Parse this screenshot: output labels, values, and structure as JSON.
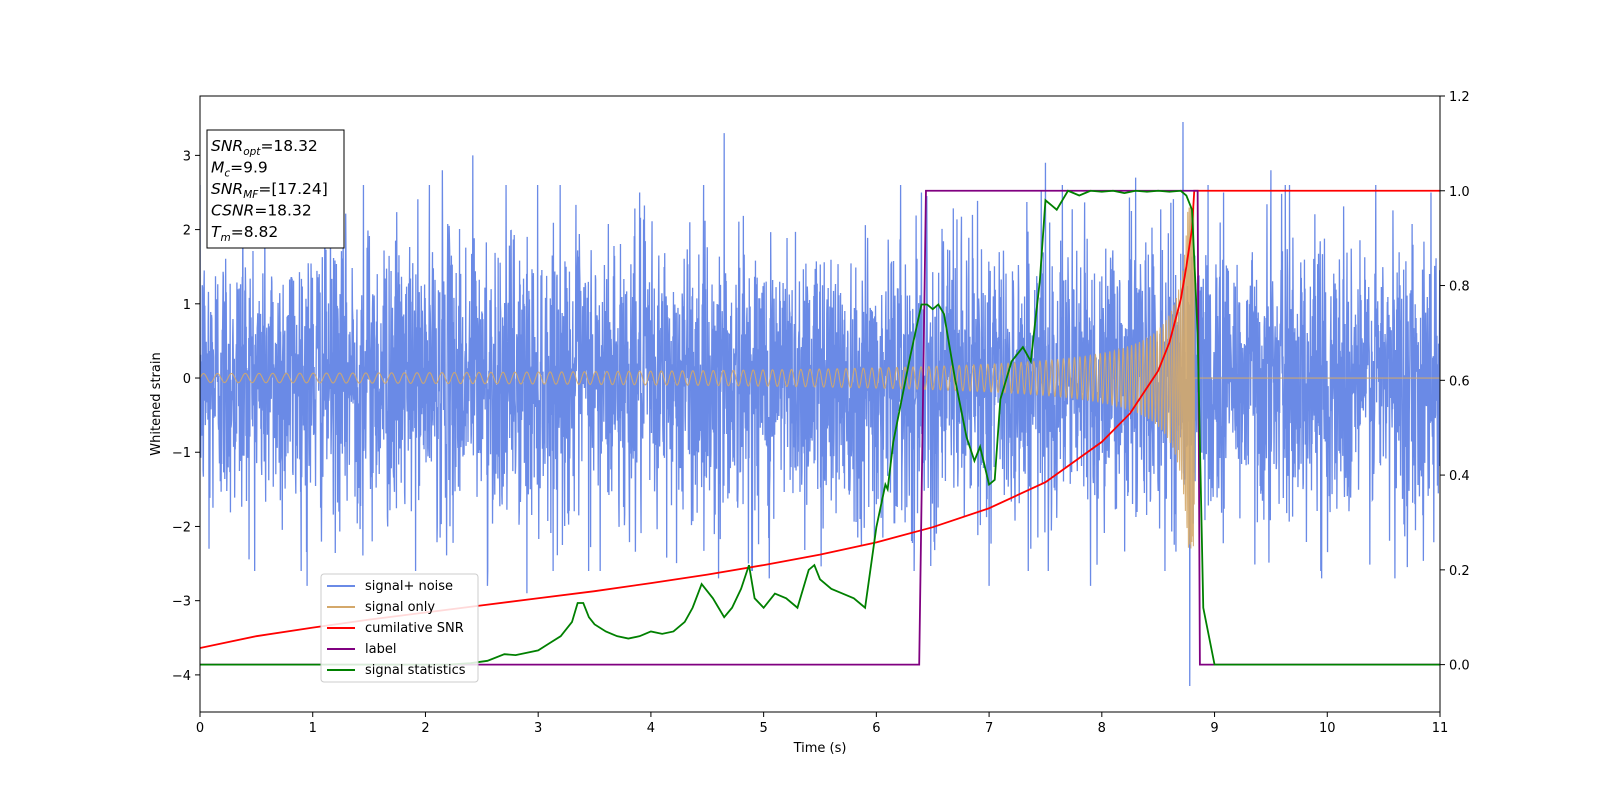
{
  "chart_data": {
    "type": "line",
    "xlabel": "Time (s)",
    "ylabel": "Whitened strain",
    "xlim": [
      0,
      11
    ],
    "ylim_left": [
      -4.5,
      3.8
    ],
    "ylim_right": [
      -0.1,
      1.2
    ],
    "x_ticks": [
      0,
      1,
      2,
      3,
      4,
      5,
      6,
      7,
      8,
      9,
      10,
      11
    ],
    "y_ticks_left": [
      -4,
      -3,
      -2,
      -1,
      0,
      1,
      2,
      3
    ],
    "y_ticks_right": [
      0.0,
      0.2,
      0.4,
      0.6,
      0.8,
      1.0,
      1.2
    ],
    "y_tick_labels_left": [
      "−4",
      "−3",
      "−2",
      "−1",
      "0",
      "1",
      "2",
      "3"
    ],
    "y_tick_labels_right": [
      "0.0",
      "0.2",
      "0.4",
      "0.6",
      "0.8",
      "1.0",
      "1.2"
    ],
    "grid": false,
    "legend_position": "lower-left",
    "annotation": {
      "lines": [
        {
          "main": "SNR",
          "sub": "opt",
          "value": "=18.32"
        },
        {
          "main": "M",
          "sub": "c",
          "value": "=9.9"
        },
        {
          "main": "SNR",
          "sub": "MF",
          "value": "=[17.24]"
        },
        {
          "main": "CSNR",
          "sub": "",
          "value": "=18.32"
        },
        {
          "main": "T",
          "sub": "m",
          "value": "=8.82"
        }
      ]
    },
    "series": [
      {
        "name": "signal+ noise",
        "axis": "left",
        "color": "#6A8AE6",
        "kind": "noise",
        "noise_sigma": 0.95,
        "outliers": [
          [
            0.08,
            -2.3
          ],
          [
            0.38,
            2.6
          ],
          [
            0.95,
            -2.8
          ],
          [
            1.45,
            2.6
          ],
          [
            2.15,
            2.8
          ],
          [
            2.42,
            3.0
          ],
          [
            2.55,
            -2.8
          ],
          [
            2.9,
            -2.9
          ],
          [
            3.55,
            -2.6
          ],
          [
            3.9,
            2.5
          ],
          [
            4.6,
            -2.7
          ],
          [
            4.65,
            3.3
          ],
          [
            5.05,
            -2.7
          ],
          [
            6.4,
            2.5
          ],
          [
            7.0,
            -2.8
          ],
          [
            7.5,
            2.9
          ],
          [
            7.9,
            -2.8
          ],
          [
            8.3,
            2.7
          ],
          [
            8.72,
            3.45
          ],
          [
            8.78,
            -4.15
          ],
          [
            9.08,
            2.5
          ],
          [
            9.5,
            2.8
          ],
          [
            9.95,
            -2.7
          ],
          [
            10.6,
            -2.7
          ],
          [
            10.92,
            2.5
          ]
        ]
      },
      {
        "name": "signal only",
        "axis": "left",
        "color": "#D4A86A",
        "kind": "chirp",
        "merger_time": 8.82,
        "peak_amplitude": 2.3,
        "base_amplitude": 0.06
      },
      {
        "name": "cumilative SNR",
        "axis": "right",
        "color": "#FF0000",
        "x": [
          0,
          0.5,
          1,
          1.5,
          2,
          2.5,
          3,
          3.5,
          4,
          4.5,
          5,
          5.5,
          6,
          6.5,
          7,
          7.5,
          8,
          8.25,
          8.5,
          8.6,
          8.7,
          8.75,
          8.8,
          8.82,
          9,
          10,
          11
        ],
        "y": [
          0.035,
          0.06,
          0.078,
          0.095,
          0.11,
          0.125,
          0.14,
          0.155,
          0.172,
          0.19,
          0.21,
          0.232,
          0.258,
          0.29,
          0.33,
          0.385,
          0.47,
          0.53,
          0.62,
          0.68,
          0.77,
          0.84,
          0.92,
          1.0,
          1.0,
          1.0,
          1.0
        ]
      },
      {
        "name": "label",
        "axis": "right",
        "color": "#800080",
        "x": [
          0,
          6.38,
          6.44,
          8.85,
          8.87,
          11
        ],
        "y": [
          0,
          0,
          1,
          1,
          0,
          0
        ]
      },
      {
        "name": "signal statistics",
        "axis": "right",
        "color": "#008000",
        "x": [
          0,
          2.2,
          2.4,
          2.55,
          2.7,
          2.8,
          2.9,
          3.0,
          3.1,
          3.2,
          3.3,
          3.35,
          3.4,
          3.45,
          3.5,
          3.6,
          3.7,
          3.8,
          3.9,
          4.0,
          4.1,
          4.2,
          4.3,
          4.37,
          4.45,
          4.55,
          4.6,
          4.65,
          4.72,
          4.8,
          4.87,
          4.92,
          5.0,
          5.1,
          5.2,
          5.3,
          5.4,
          5.45,
          5.5,
          5.6,
          5.7,
          5.8,
          5.9,
          6.0,
          6.08,
          6.1,
          6.15,
          6.2,
          6.3,
          6.4,
          6.45,
          6.5,
          6.55,
          6.6,
          6.7,
          6.8,
          6.87,
          6.92,
          7.0,
          7.05,
          7.1,
          7.2,
          7.3,
          7.37,
          7.45,
          7.5,
          7.55,
          7.6,
          7.7,
          7.8,
          7.9,
          8.0,
          8.1,
          8.2,
          8.3,
          8.4,
          8.5,
          8.6,
          8.7,
          8.75,
          8.8,
          8.85,
          8.9,
          9.0,
          11
        ],
        "y": [
          0,
          0,
          0.003,
          0.008,
          0.022,
          0.02,
          0.025,
          0.03,
          0.045,
          0.06,
          0.09,
          0.13,
          0.13,
          0.1,
          0.085,
          0.07,
          0.06,
          0.055,
          0.06,
          0.07,
          0.065,
          0.07,
          0.09,
          0.12,
          0.17,
          0.14,
          0.12,
          0.1,
          0.12,
          0.16,
          0.21,
          0.14,
          0.12,
          0.15,
          0.14,
          0.12,
          0.2,
          0.21,
          0.18,
          0.16,
          0.15,
          0.14,
          0.12,
          0.29,
          0.38,
          0.37,
          0.47,
          0.53,
          0.65,
          0.76,
          0.76,
          0.75,
          0.76,
          0.74,
          0.6,
          0.48,
          0.43,
          0.46,
          0.38,
          0.39,
          0.56,
          0.64,
          0.67,
          0.64,
          0.81,
          0.98,
          0.97,
          0.96,
          1.0,
          0.99,
          1.0,
          0.998,
          1.0,
          0.995,
          1.0,
          0.998,
          1.0,
          0.998,
          1.0,
          0.99,
          0.96,
          0.7,
          0.12,
          0.0,
          0.0
        ]
      }
    ]
  }
}
